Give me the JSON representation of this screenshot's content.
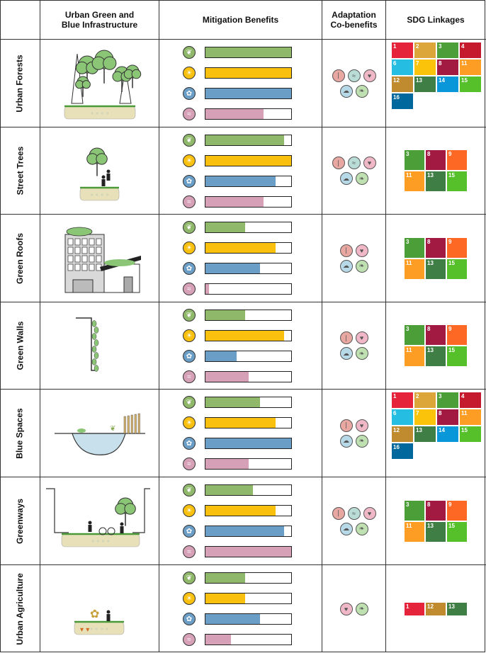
{
  "headers": {
    "col1": "Urban Green and\nBlue Infrastructure",
    "col2": "Mitigation Benefits",
    "col3": "Adaptation\nCo-benefits",
    "col4": "SDG Linkages"
  },
  "benefit_colors": [
    "#8fb86a",
    "#f9c10e",
    "#6b9ec6",
    "#d6a0b6"
  ],
  "benefit_icons": [
    "leaf-badge-icon",
    "sun-badge-icon",
    "water-badge-icon",
    "wind-badge-icon"
  ],
  "adaptation_icons": [
    "thermometer-icon",
    "water-drop-icon",
    "heart-icon",
    "cloud-icon",
    "leaf-icon"
  ],
  "sdg_colors": {
    "1": "#e5243b",
    "2": "#dda63a",
    "3": "#4c9f38",
    "4": "#c5192d",
    "6": "#26bde2",
    "7": "#fcc30b",
    "8": "#a21942",
    "9": "#fd6925",
    "11": "#fd9d24",
    "12": "#bf8b2e",
    "13": "#3f7e44",
    "14": "#0a97d9",
    "15": "#56c02b",
    "16": "#00689d"
  },
  "rows": [
    {
      "label": "Urban Forests",
      "benefits": [
        1.0,
        1.0,
        1.0,
        0.68
      ],
      "adaptation": [
        "thermometer-icon",
        "water-drop-icon",
        "heart-icon",
        "cloud-icon",
        "leaf-icon"
      ],
      "sdgs": [
        "1",
        "2",
        "3",
        "4",
        "6",
        "7",
        "8",
        "11",
        "12",
        "13",
        "14",
        "15",
        "16"
      ]
    },
    {
      "label": "Street Trees",
      "benefits": [
        0.92,
        1.0,
        0.82,
        0.68
      ],
      "adaptation": [
        "thermometer-icon",
        "water-drop-icon",
        "heart-icon",
        "cloud-icon",
        "leaf-icon"
      ],
      "sdgs": [
        "3",
        "8",
        "9",
        "11",
        "13",
        "15"
      ]
    },
    {
      "label": "Green Roofs",
      "benefits": [
        0.46,
        0.82,
        0.64,
        0.04
      ],
      "adaptation": [
        "thermometer-icon",
        "heart-icon",
        "cloud-icon",
        "leaf-icon"
      ],
      "sdgs": [
        "3",
        "8",
        "9",
        "11",
        "13",
        "15"
      ]
    },
    {
      "label": "Green Walls",
      "benefits": [
        0.46,
        0.92,
        0.36,
        0.5
      ],
      "adaptation": [
        "thermometer-icon",
        "heart-icon",
        "cloud-icon",
        "leaf-icon"
      ],
      "sdgs": [
        "3",
        "8",
        "9",
        "11",
        "13",
        "15"
      ]
    },
    {
      "label": "Blue Spaces",
      "benefits": [
        0.64,
        0.82,
        1.0,
        0.5
      ],
      "adaptation": [
        "thermometer-icon",
        "heart-icon",
        "cloud-icon",
        "leaf-icon"
      ],
      "sdgs": [
        "1",
        "2",
        "3",
        "4",
        "6",
        "7",
        "8",
        "11",
        "12",
        "13",
        "14",
        "15",
        "16"
      ]
    },
    {
      "label": "Greenways",
      "benefits": [
        0.55,
        0.82,
        0.92,
        1.0
      ],
      "adaptation": [
        "thermometer-icon",
        "water-drop-icon",
        "heart-icon",
        "cloud-icon",
        "leaf-icon"
      ],
      "sdgs": [
        "3",
        "8",
        "9",
        "11",
        "13",
        "15"
      ]
    },
    {
      "label": "Urban Agriculture",
      "benefits": [
        0.46,
        0.46,
        0.64,
        0.3
      ],
      "adaptation": [
        "heart-icon",
        "leaf-icon"
      ],
      "sdgs": [
        "1",
        "12",
        "13"
      ]
    }
  ]
}
